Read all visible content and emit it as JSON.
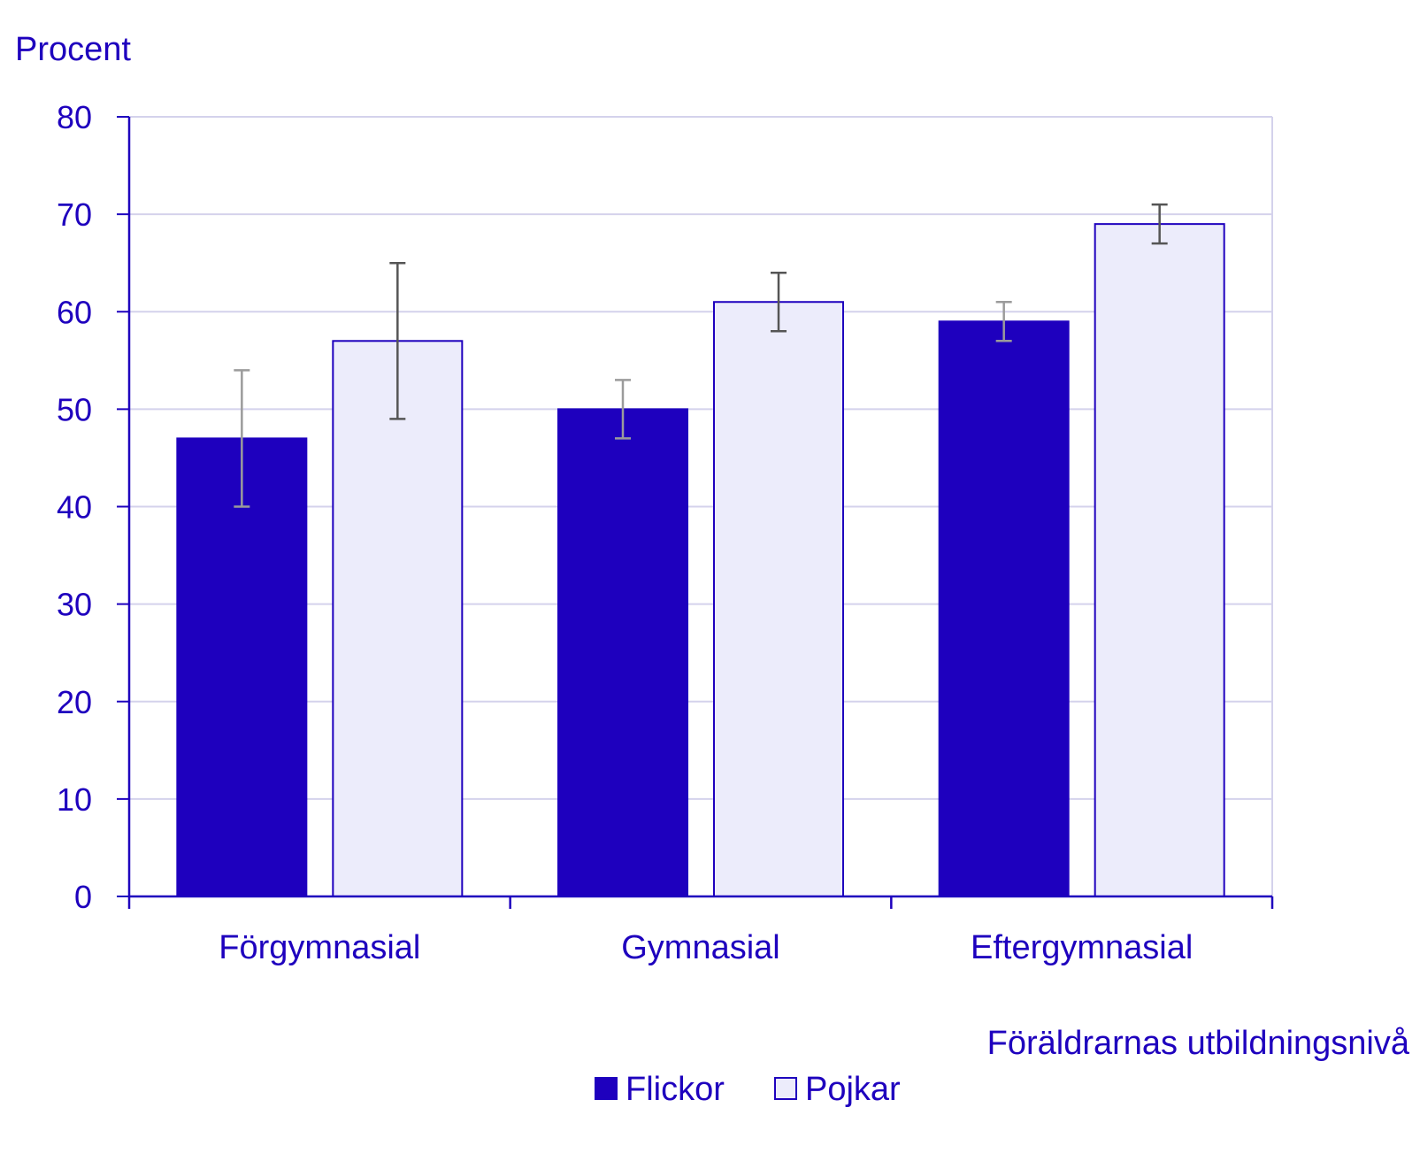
{
  "chart_data": {
    "type": "bar",
    "ylabel": "Procent",
    "xlabel": "Föräldrarnas utbildningsnivå",
    "categories": [
      "Förgymnasial",
      "Gymnasial",
      "Eftergymnasial"
    ],
    "ylim": [
      0,
      80
    ],
    "yticks": [
      0,
      10,
      20,
      30,
      40,
      50,
      60,
      70,
      80
    ],
    "grid": true,
    "legend_position": "bottom-center",
    "series": [
      {
        "name": "Flickor",
        "values": [
          47,
          50,
          59
        ],
        "error_low": [
          40,
          47,
          57
        ],
        "error_high": [
          54,
          53,
          61
        ]
      },
      {
        "name": "Pojkar",
        "values": [
          57,
          61,
          69
        ],
        "error_low": [
          49,
          58,
          67
        ],
        "error_high": [
          65,
          64,
          71
        ]
      }
    ]
  },
  "colors": {
    "text": "#1e00be",
    "axis": "#1e00be",
    "grid": "#d4d2ec",
    "flickor_fill": "#1e00be",
    "pojkar_fill": "#ececfb",
    "pojkar_stroke": "#1e00be",
    "errorbar_flickor": "#9b9b9b",
    "errorbar_pojkar": "#555555"
  }
}
